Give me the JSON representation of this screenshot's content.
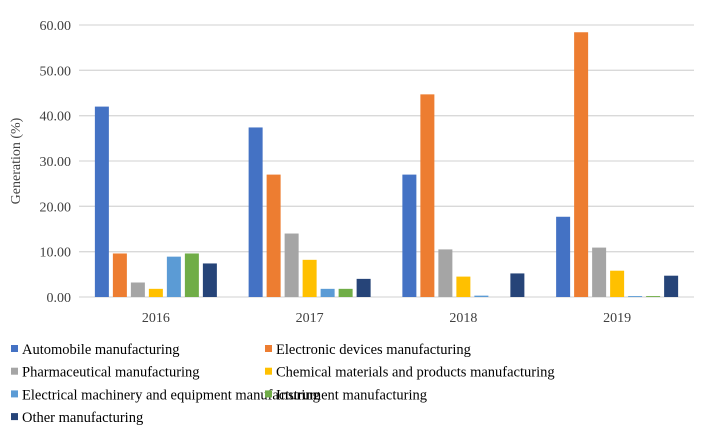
{
  "chart_data": {
    "type": "bar",
    "title": "",
    "xlabel": "",
    "ylabel": "Generation (%)",
    "ylim": [
      0,
      60
    ],
    "yticks": [
      "0.00",
      "10.00",
      "20.00",
      "30.00",
      "40.00",
      "50.00",
      "60.00"
    ],
    "grid": true,
    "legend_position": "bottom",
    "categories": [
      "2016",
      "2017",
      "2018",
      "2019"
    ],
    "series": [
      {
        "name": "Automobile manufacturing",
        "color": "#4472C4",
        "values": [
          42.0,
          37.4,
          27.0,
          17.7
        ]
      },
      {
        "name": "Electronic devices manufacturing",
        "color": "#ED7D31",
        "values": [
          9.6,
          27.0,
          44.7,
          58.4
        ]
      },
      {
        "name": "Pharmaceutical manufacturing",
        "color": "#A5A5A5",
        "values": [
          3.2,
          14.0,
          10.5,
          10.9
        ]
      },
      {
        "name": "Chemical materials and products manufacturing",
        "color": "#FFC000",
        "values": [
          1.8,
          8.2,
          4.5,
          5.8
        ]
      },
      {
        "name": "Electrical machinery and equipment manufacturing",
        "color": "#5B9BD5",
        "values": [
          8.9,
          1.8,
          0.3,
          0.2
        ]
      },
      {
        "name": "Instrument manufacturing",
        "color": "#70AD47",
        "values": [
          9.6,
          1.8,
          0.0,
          0.2
        ]
      },
      {
        "name": "Other manufacturing",
        "color": "#264478",
        "values": [
          7.4,
          4.0,
          5.2,
          4.7
        ]
      }
    ]
  }
}
